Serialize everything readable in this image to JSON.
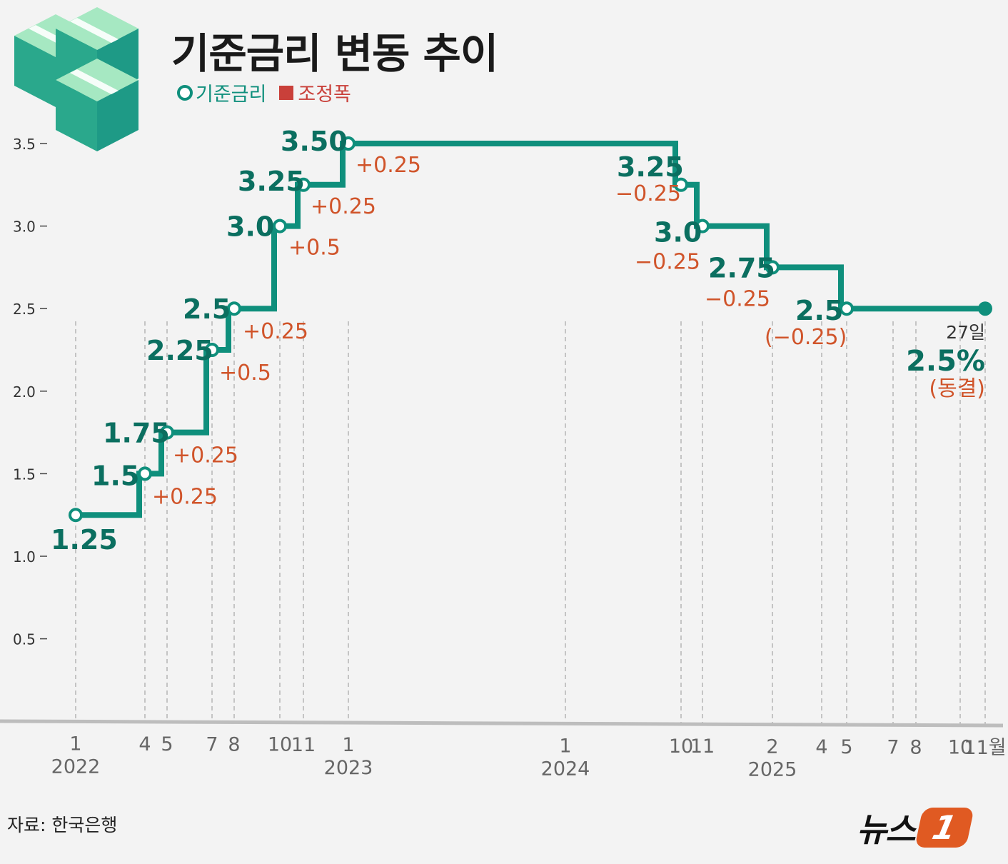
{
  "header": {
    "title": "기준금리 변동 추이",
    "legend_rate": "기준금리",
    "legend_change": "조정폭"
  },
  "source": "자료: 한국은행",
  "logo": {
    "text": "뉴스",
    "badge": "1"
  },
  "colors": {
    "line": "#0f8f7c",
    "change": "#c9403a",
    "axis": "#999999",
    "money": "#8fdcb0"
  },
  "chart_data": {
    "type": "line",
    "step": true,
    "ylim": [
      0,
      3.5
    ],
    "yticks": [
      "0.5",
      "1.0",
      "1.5",
      "2.0",
      "2.5",
      "3.0",
      "3.5"
    ],
    "x_labels": [
      {
        "month": "1",
        "year": "2022"
      },
      {
        "month": "4"
      },
      {
        "month": "5"
      },
      {
        "month": "7"
      },
      {
        "month": "8"
      },
      {
        "month": "10"
      },
      {
        "month": "11"
      },
      {
        "month": "1",
        "year": "2023"
      },
      {
        "month": "1",
        "year": "2024"
      },
      {
        "month": "10"
      },
      {
        "month": "11"
      },
      {
        "month": "2",
        "year": "2025"
      },
      {
        "month": "4"
      },
      {
        "month": "5"
      },
      {
        "month": "7"
      },
      {
        "month": "8"
      },
      {
        "month": "10"
      },
      {
        "month": "11월"
      }
    ],
    "points": [
      {
        "date": "2022-01",
        "value": 1.25,
        "label": "1.25",
        "change": ""
      },
      {
        "date": "2022-04",
        "value": 1.5,
        "label": "1.5",
        "change": "+0.25"
      },
      {
        "date": "2022-05",
        "value": 1.75,
        "label": "1.75",
        "change": "+0.25"
      },
      {
        "date": "2022-07",
        "value": 2.25,
        "label": "2.25",
        "change": "+0.5"
      },
      {
        "date": "2022-08",
        "value": 2.5,
        "label": "2.5",
        "change": "+0.25"
      },
      {
        "date": "2022-10",
        "value": 3.0,
        "label": "3.0",
        "change": "+0.5"
      },
      {
        "date": "2022-11",
        "value": 3.25,
        "label": "3.25",
        "change": "+0.25"
      },
      {
        "date": "2023-01",
        "value": 3.5,
        "label": "3.50",
        "change": "+0.25"
      },
      {
        "date": "2024-10",
        "value": 3.25,
        "label": "3.25",
        "change": "−0.25"
      },
      {
        "date": "2024-11",
        "value": 3.0,
        "label": "3.0",
        "change": "−0.25"
      },
      {
        "date": "2025-02",
        "value": 2.75,
        "label": "2.75",
        "change": "−0.25"
      },
      {
        "date": "2025-05",
        "value": 2.5,
        "label": "2.5",
        "change": "(−0.25)"
      }
    ],
    "final": {
      "date": "2025-11-27",
      "value": 2.5,
      "day_label": "27일",
      "value_label": "2.5%",
      "note": "(동결)"
    }
  }
}
